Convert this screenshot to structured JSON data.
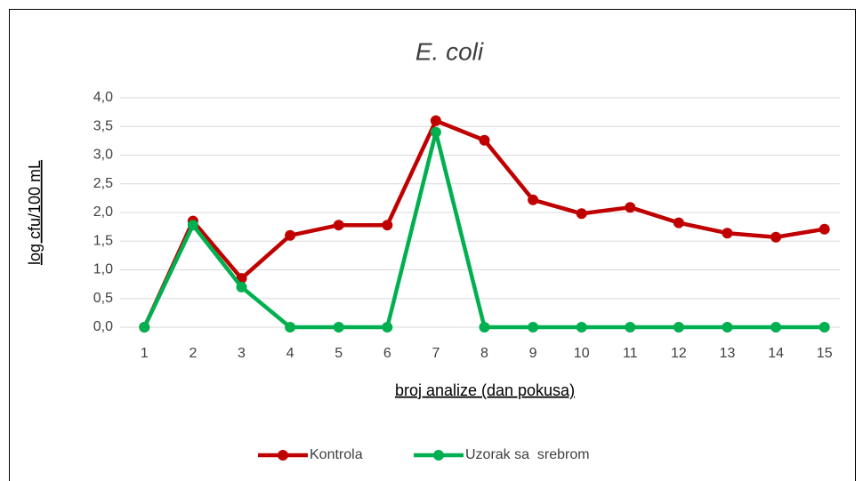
{
  "chart_data": {
    "type": "line",
    "title": "E. coli",
    "x_label": "broj analize (dan pokusa)",
    "y_label": "log cfu/100 mL",
    "categories": [
      "1",
      "2",
      "3",
      "4",
      "5",
      "6",
      "7",
      "8",
      "9",
      "10",
      "11",
      "12",
      "13",
      "14",
      "15"
    ],
    "series": [
      {
        "name": "Kontrola",
        "color": "#c00000",
        "values": [
          0,
          1.85,
          0.85,
          1.6,
          1.78,
          1.78,
          3.6,
          3.26,
          2.22,
          1.98,
          2.09,
          1.82,
          1.64,
          1.57,
          1.71
        ]
      },
      {
        "name": "Uzorak sa  srebrom",
        "color": "#00b050",
        "values": [
          0,
          1.78,
          0.7,
          0,
          0,
          0,
          3.4,
          0,
          0,
          0,
          0,
          0,
          0,
          0,
          0
        ]
      }
    ],
    "ylim": [
      0,
      4
    ],
    "yticks": [
      {
        "value": 0,
        "label": "0,0"
      },
      {
        "value": 0.5,
        "label": "0,5"
      },
      {
        "value": 1,
        "label": "1,0"
      },
      {
        "value": 1.5,
        "label": "1,5"
      },
      {
        "value": 2,
        "label": "2,0"
      },
      {
        "value": 2.5,
        "label": "2,5"
      },
      {
        "value": 3,
        "label": "3,0"
      },
      {
        "value": 3.5,
        "label": "3,5"
      },
      {
        "value": 4,
        "label": "4,0"
      }
    ],
    "grid": true,
    "legend": "bottom"
  }
}
